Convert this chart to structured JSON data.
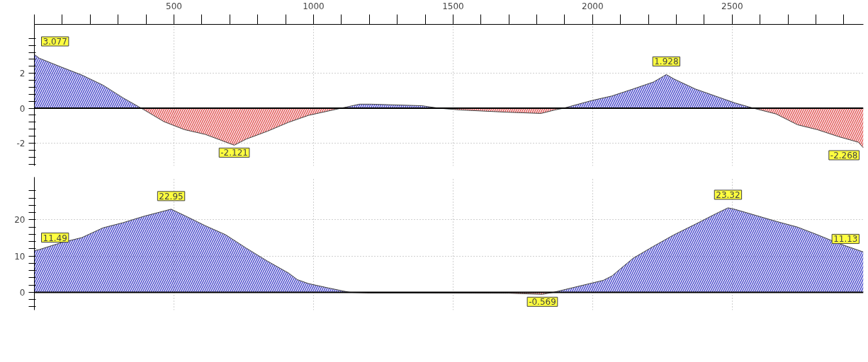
{
  "chart_data": [
    {
      "type": "area",
      "xlim": [
        0,
        2970
      ],
      "ylim": [
        -3.3,
        4.8
      ],
      "xticks": [
        {
          "value": 0,
          "label": null
        },
        {
          "value": 100,
          "label": null
        },
        {
          "value": 200,
          "label": null
        },
        {
          "value": 300,
          "label": null
        },
        {
          "value": 400,
          "label": null
        },
        500,
        {
          "value": 600,
          "label": null
        },
        {
          "value": 700,
          "label": null
        },
        {
          "value": 800,
          "label": null
        },
        {
          "value": 900,
          "label": null
        },
        1000,
        {
          "value": 1100,
          "label": null
        },
        {
          "value": 1200,
          "label": null
        },
        {
          "value": 1300,
          "label": null
        },
        {
          "value": 1400,
          "label": null
        },
        1500,
        {
          "value": 1600,
          "label": null
        },
        {
          "value": 1700,
          "label": null
        },
        {
          "value": 1800,
          "label": null
        },
        {
          "value": 1900,
          "label": null
        },
        2000,
        {
          "value": 2100,
          "label": null
        },
        {
          "value": 2200,
          "label": null
        },
        {
          "value": 2300,
          "label": null
        },
        {
          "value": 2400,
          "label": null
        },
        2500,
        {
          "value": 2600,
          "label": null
        },
        {
          "value": 2700,
          "label": null
        },
        {
          "value": 2800,
          "label": null
        },
        {
          "value": 2900,
          "label": null
        }
      ],
      "yticks": [
        {
          "value": -3.2,
          "label": null
        },
        {
          "value": -2.8,
          "label": null
        },
        {
          "value": -2.4,
          "label": null
        },
        -2,
        {
          "value": -1.6,
          "label": null
        },
        {
          "value": -1.2,
          "label": null
        },
        {
          "value": -0.8,
          "label": null
        },
        {
          "value": -0.4,
          "label": null
        },
        0,
        {
          "value": 0.4,
          "label": null
        },
        {
          "value": 0.8,
          "label": null
        },
        {
          "value": 1.2,
          "label": null
        },
        {
          "value": 1.6,
          "label": null
        },
        2,
        {
          "value": 2.4,
          "label": null
        },
        {
          "value": 2.8,
          "label": null
        },
        {
          "value": 3.2,
          "label": null
        },
        {
          "value": 3.6,
          "label": null
        },
        {
          "value": 4,
          "label": null
        }
      ],
      "grid": true,
      "ref_lines": [
        {
          "axis": "y",
          "value": 0,
          "color": "#000000"
        }
      ],
      "series": [
        {
          "color": "#3a3ac8",
          "x": [
            0,
            18,
            96,
            170,
            246,
            317,
            383
          ],
          "values": [
            3.077,
            2.86,
            2.36,
            1.9,
            1.32,
            0.6,
            0
          ]
        },
        {
          "color": "#e04848",
          "x": [
            383,
            464,
            538,
            612,
            716,
            759,
            835,
            909,
            982,
            1099
          ],
          "values": [
            0,
            -0.77,
            -1.23,
            -1.5,
            -2.121,
            -1.77,
            -1.32,
            -0.82,
            -0.41,
            0
          ]
        },
        {
          "color": "#3a3ac8",
          "x": [
            1099,
            1165,
            1206,
            1388,
            1449
          ],
          "values": [
            0,
            0.23,
            0.23,
            0.14,
            0
          ]
        },
        {
          "color": "#e04848",
          "x": [
            1449,
            1525,
            1693,
            1815,
            1865,
            1896
          ],
          "values": [
            0,
            -0.1,
            -0.23,
            -0.3,
            -0.1,
            0
          ]
        },
        {
          "color": "#3a3ac8",
          "x": [
            1896,
            1997,
            2069,
            2145,
            2218,
            2264,
            2292,
            2368,
            2439,
            2510,
            2576
          ],
          "values": [
            0,
            0.44,
            0.7,
            1.1,
            1.5,
            1.928,
            1.67,
            1.1,
            0.7,
            0.3,
            0
          ]
        },
        {
          "color": "#e04848",
          "x": [
            2576,
            2657,
            2734,
            2805,
            2881,
            2952,
            2970
          ],
          "values": [
            0,
            -0.33,
            -0.95,
            -1.23,
            -1.63,
            -1.95,
            -2.268
          ]
        }
      ],
      "annotations": [
        {
          "text": "3.077",
          "x": 0,
          "y": 3.077
        },
        {
          "text": "-2.121",
          "x": 716,
          "y": -2.121
        },
        {
          "text": "1.928",
          "x": 2264,
          "y": 1.928
        },
        {
          "text": "-2.268",
          "x": 2970,
          "y": -2.268
        }
      ]
    },
    {
      "type": "area",
      "xlim": [
        0,
        2970
      ],
      "ylim": [
        -4.9,
        31.8
      ],
      "tick_labels": "y",
      "xticks": [
        0,
        500,
        1000,
        1500,
        2000,
        2500
      ],
      "yticks": [
        {
          "value": -4,
          "label": null
        },
        {
          "value": -2,
          "label": null
        },
        0,
        {
          "value": 2,
          "label": null
        },
        {
          "value": 4,
          "label": null
        },
        {
          "value": 6,
          "label": null
        },
        {
          "value": 8,
          "label": null
        },
        10,
        {
          "value": 12,
          "label": null
        },
        {
          "value": 14,
          "label": null
        },
        {
          "value": 16,
          "label": null
        },
        {
          "value": 18,
          "label": null
        },
        20,
        {
          "value": 22,
          "label": null
        },
        {
          "value": 24,
          "label": null
        },
        {
          "value": 26,
          "label": null
        },
        {
          "value": 28,
          "label": null
        }
      ],
      "grid": true,
      "ref_lines": [
        {
          "axis": "y",
          "value": 0,
          "color": "#000000"
        }
      ],
      "series": [
        {
          "color": "#3a3ac8",
          "x": [
            0,
            18,
            96,
            170,
            246,
            317,
            393,
            490,
            538,
            612,
            685,
            759,
            835,
            911,
            942,
            982,
            1053,
            1129
          ],
          "values": [
            11.49,
            11.8,
            13.7,
            15.1,
            17.8,
            19.2,
            21.0,
            22.95,
            21.2,
            18.4,
            15.9,
            12.2,
            8.6,
            5.3,
            3.5,
            2.4,
            1.2,
            0
          ]
        },
        {
          "color": "#e04848",
          "x": [
            1129,
            1200,
            1700,
            1820,
            1860
          ],
          "values": [
            0,
            -0.2,
            -0.25,
            -0.569,
            0
          ]
        },
        {
          "color": "#3a3ac8",
          "x": [
            1860,
            2038,
            2069,
            2145,
            2218,
            2292,
            2368,
            2439,
            2485,
            2510,
            2586,
            2657,
            2734,
            2805,
            2881,
            2970
          ],
          "values": [
            0,
            3.3,
            4.5,
            9.4,
            12.7,
            15.9,
            18.8,
            21.6,
            23.32,
            22.9,
            21.2,
            19.6,
            18.0,
            15.9,
            13.5,
            11.13
          ]
        }
      ],
      "annotations": [
        {
          "text": "11.49",
          "x": 0,
          "y": 11.49
        },
        {
          "text": "22.95",
          "x": 490,
          "y": 22.95
        },
        {
          "text": "-0.569",
          "x": 1820,
          "y": -0.569
        },
        {
          "text": "23.32",
          "x": 2485,
          "y": 23.32
        },
        {
          "text": "11.13",
          "x": 2970,
          "y": 11.13
        }
      ]
    }
  ]
}
